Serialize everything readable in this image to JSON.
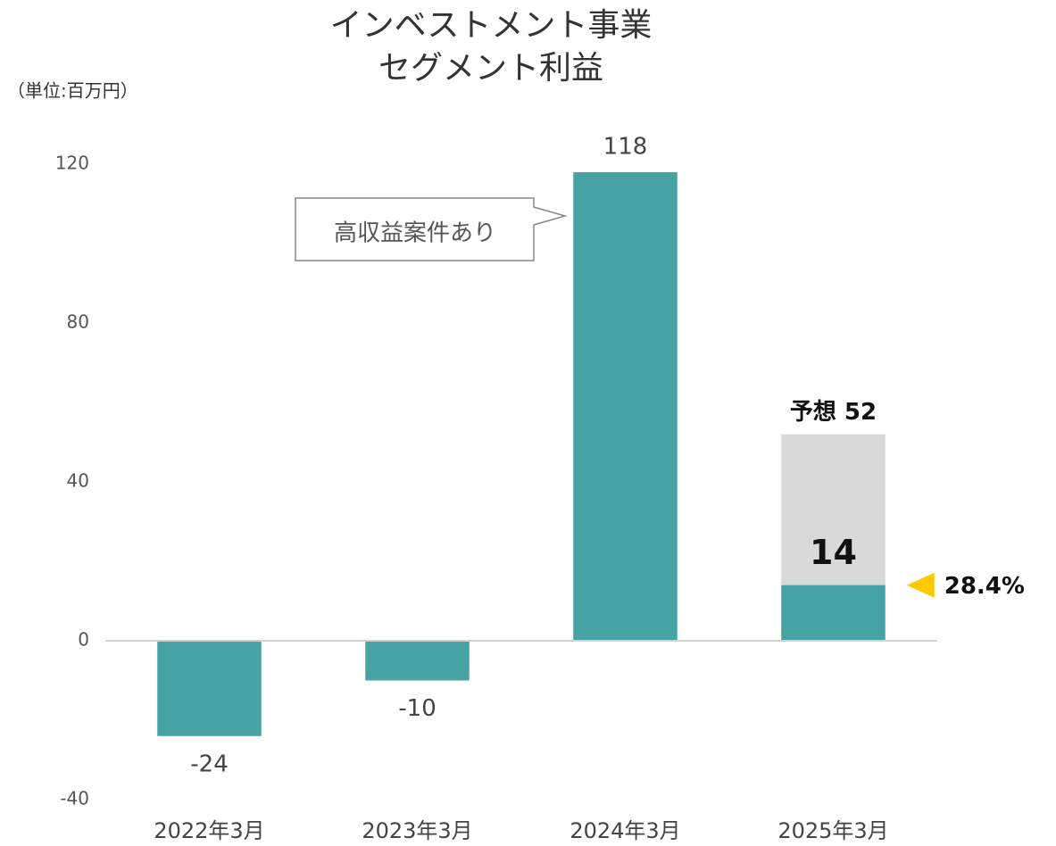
{
  "chart_data": {
    "type": "bar",
    "title": [
      "インベストメント事業",
      "セグメント利益"
    ],
    "unit_label": "（単位:百万円）",
    "categories": [
      "2022年3月",
      "2023年3月",
      "2024年3月",
      "2025年3月"
    ],
    "series": [
      {
        "color": "#47a3a3",
        "values": [
          -24,
          -10,
          118,
          14
        ]
      },
      {
        "color": "#d9d9d9",
        "values": [
          null,
          null,
          null,
          52
        ],
        "value_labels": [
          null,
          null,
          null,
          "予想 52"
        ]
      }
    ],
    "ylim": [
      -40,
      120
    ],
    "yticks": [
      -40,
      0,
      40,
      80,
      120
    ],
    "grid": false,
    "annotations": [
      {
        "text": "高収益案件あり",
        "category": 2
      },
      {
        "text": "28.4%",
        "category": 3,
        "color": "#ffc800"
      }
    ]
  }
}
